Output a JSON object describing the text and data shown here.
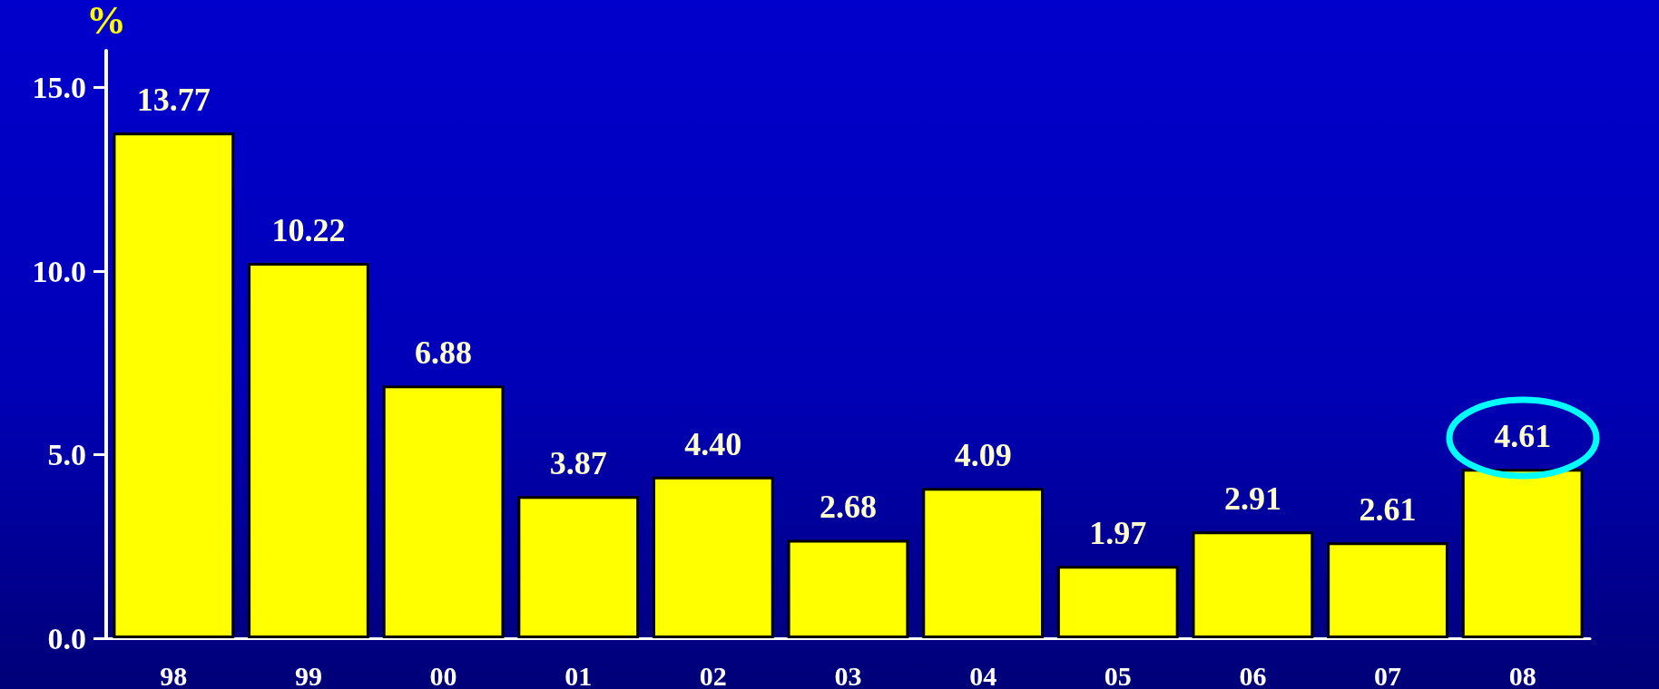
{
  "chart_data": {
    "type": "bar",
    "ylabel": "%",
    "categories": [
      "98",
      "99",
      "00",
      "01",
      "02",
      "03",
      "04",
      "05",
      "06",
      "07",
      "08"
    ],
    "values": [
      13.77,
      10.22,
      6.88,
      3.87,
      4.4,
      2.68,
      4.09,
      1.97,
      2.91,
      2.61,
      4.61
    ],
    "value_labels": [
      "13.77",
      "10.22",
      "6.88",
      "3.87",
      "4.40",
      "2.68",
      "4.09",
      "1.97",
      "2.91",
      "2.61",
      "4.61"
    ],
    "color": "#ffff00",
    "ylim": [
      0,
      16
    ],
    "yticks": [
      {
        "value": 0,
        "label": "0.0"
      },
      {
        "value": 5,
        "label": "5.0"
      },
      {
        "value": 10,
        "label": "10.0"
      },
      {
        "value": 15,
        "label": "15.0"
      }
    ],
    "grid": false
  }
}
